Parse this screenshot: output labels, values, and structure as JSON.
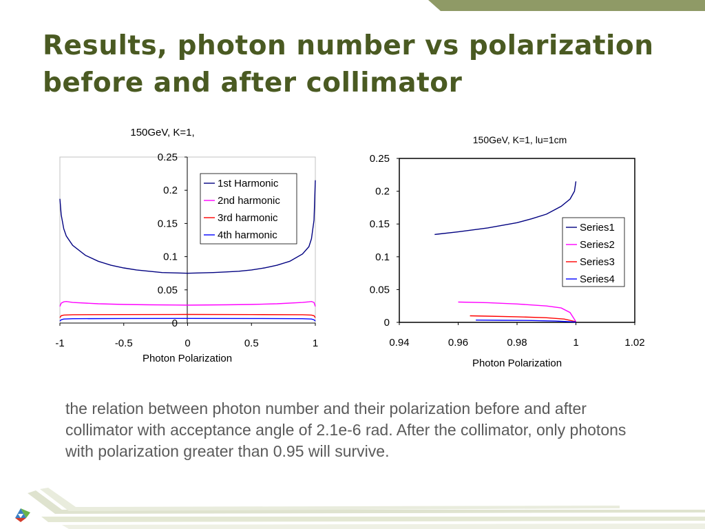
{
  "slide": {
    "title_line1": "Results, photon number vs polarization",
    "title_line2": "before and after collimator",
    "caption": "the relation between photon number and their polarization before and after collimator with acceptance angle of 2.1e-6 rad.   After the collimator, only photons with polarization greater than 0.95 will survive.",
    "colors": {
      "title": "#4a5a22",
      "band": "#8f9a66",
      "caption": "#5a5a5a"
    }
  },
  "chart_data": [
    {
      "type": "line",
      "title": "150GeV, K=1,",
      "xlabel": "Photon Polarization",
      "ylabel": "",
      "xlim": [
        -1,
        1
      ],
      "ylim": [
        0,
        0.25
      ],
      "xticks": [
        "-1",
        "-0.5",
        "0",
        "0.5",
        "1"
      ],
      "yticks": [
        "0",
        "0.05",
        "0.1",
        "0.15",
        "0.2",
        "0.25"
      ],
      "grid": false,
      "legend_position": "top-right",
      "series": [
        {
          "name": "1st Harmonic",
          "color": "#000080",
          "x": [
            -1,
            -0.99,
            -0.97,
            -0.95,
            -0.9,
            -0.8,
            -0.7,
            -0.6,
            -0.5,
            -0.4,
            -0.3,
            -0.2,
            -0.1,
            0,
            0.1,
            0.2,
            0.3,
            0.4,
            0.5,
            0.6,
            0.7,
            0.8,
            0.9,
            0.95,
            0.97,
            0.99,
            1
          ],
          "y": [
            0.187,
            0.163,
            0.142,
            0.131,
            0.117,
            0.102,
            0.093,
            0.087,
            0.083,
            0.08,
            0.078,
            0.076,
            0.0755,
            0.075,
            0.0755,
            0.076,
            0.077,
            0.078,
            0.08,
            0.083,
            0.087,
            0.093,
            0.104,
            0.115,
            0.127,
            0.155,
            0.215
          ]
        },
        {
          "name": "2nd harmonic",
          "color": "#ff00ff",
          "x": [
            -1,
            -0.99,
            -0.97,
            -0.95,
            -0.9,
            -0.7,
            -0.5,
            -0.3,
            0,
            0.3,
            0.5,
            0.7,
            0.9,
            0.95,
            0.97,
            0.99,
            1
          ],
          "y": [
            0.025,
            0.03,
            0.032,
            0.0325,
            0.031,
            0.029,
            0.028,
            0.0275,
            0.027,
            0.0275,
            0.028,
            0.029,
            0.031,
            0.032,
            0.0325,
            0.031,
            0.025
          ]
        },
        {
          "name": "3rd harmonic",
          "color": "#ff0000",
          "x": [
            -1,
            -0.99,
            -0.97,
            -0.9,
            -0.5,
            0,
            0.5,
            0.9,
            0.97,
            0.99,
            1
          ],
          "y": [
            0.008,
            0.011,
            0.012,
            0.0125,
            0.0128,
            0.013,
            0.0128,
            0.0125,
            0.012,
            0.011,
            0.008
          ]
        },
        {
          "name": "4th harmonic",
          "color": "#0000ff",
          "x": [
            -1,
            -0.99,
            -0.97,
            -0.9,
            -0.5,
            0,
            0.5,
            0.9,
            0.97,
            0.99,
            1
          ],
          "y": [
            0.003,
            0.005,
            0.006,
            0.0065,
            0.0068,
            0.007,
            0.0068,
            0.0065,
            0.006,
            0.005,
            0.003
          ]
        }
      ]
    },
    {
      "type": "line",
      "title": "150GeV, K=1, lu=1cm",
      "xlabel": "Photon Polarization",
      "ylabel": "",
      "xlim": [
        0.94,
        1.02
      ],
      "ylim": [
        0,
        0.25
      ],
      "xticks": [
        "0.94",
        "0.96",
        "0.98",
        "1",
        "1.02"
      ],
      "yticks": [
        "0",
        "0.05",
        "0.1",
        "0.15",
        "0.2",
        "0.25"
      ],
      "grid": false,
      "legend_position": "right",
      "series": [
        {
          "name": "Series1",
          "color": "#000080",
          "x": [
            0.952,
            0.96,
            0.97,
            0.98,
            0.985,
            0.99,
            0.995,
            0.998,
            0.9995,
            1.0
          ],
          "y": [
            0.134,
            0.138,
            0.144,
            0.152,
            0.158,
            0.165,
            0.177,
            0.188,
            0.2,
            0.215
          ]
        },
        {
          "name": "Series2",
          "color": "#ff00ff",
          "x": [
            0.96,
            0.97,
            0.98,
            0.99,
            0.995,
            0.998,
            1.0
          ],
          "y": [
            0.031,
            0.03,
            0.028,
            0.025,
            0.022,
            0.015,
            0.001
          ]
        },
        {
          "name": "Series3",
          "color": "#ff0000",
          "x": [
            0.964,
            0.97,
            0.98,
            0.99,
            0.996,
            1.0
          ],
          "y": [
            0.01,
            0.0095,
            0.0085,
            0.007,
            0.005,
            0.001
          ]
        },
        {
          "name": "Series4",
          "color": "#0000ff",
          "x": [
            0.966,
            0.975,
            0.985,
            0.993,
            1.0
          ],
          "y": [
            0.0035,
            0.0032,
            0.0028,
            0.002,
            0.0005
          ]
        }
      ]
    }
  ]
}
